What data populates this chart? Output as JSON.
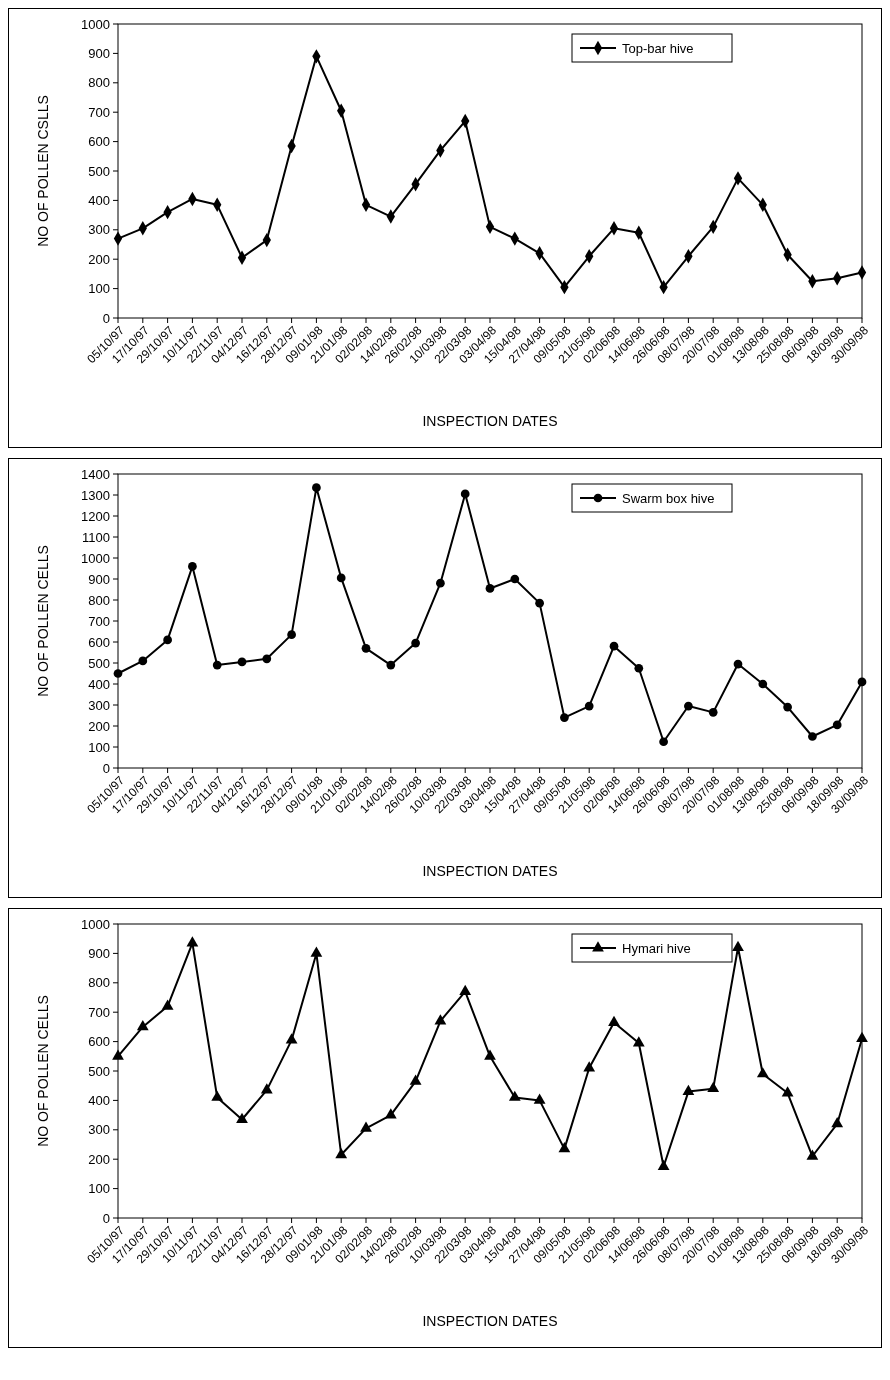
{
  "chart_data": [
    {
      "type": "line",
      "xlabel": "INSPECTION DATES",
      "ylabel": "NO OF POLLEN CSLLS",
      "categories": [
        "05/10/97",
        "17/10/97",
        "29/10/97",
        "10/11/97",
        "22/11/97",
        "04/12/97",
        "16/12/97",
        "28/12/97",
        "09/01/98",
        "21/01/98",
        "02/02/98",
        "14/02/98",
        "26/02/98",
        "10/03/98",
        "22/03/98",
        "03/04/98",
        "15/04/98",
        "27/04/98",
        "09/05/98",
        "21/05/98",
        "02/06/98",
        "14/06/98",
        "26/06/98",
        "08/07/98",
        "20/07/98",
        "01/08/98",
        "13/08/98",
        "25/08/98",
        "06/09/98",
        "18/09/98",
        "30/09/98"
      ],
      "series": [
        {
          "name": "Top-bar hive",
          "color": "#000000",
          "values": [
            270,
            305,
            360,
            405,
            385,
            205,
            265,
            585,
            890,
            705,
            385,
            345,
            455,
            570,
            670,
            310,
            270,
            220,
            105,
            210,
            305,
            290,
            105,
            210,
            310,
            475,
            385,
            215,
            125,
            135,
            155
          ]
        }
      ],
      "ylim": [
        0,
        1000
      ],
      "yticks": [
        0,
        100,
        200,
        300,
        400,
        500,
        600,
        700,
        800,
        900,
        1000
      ],
      "marker": "diamond",
      "legend": "top right",
      "grid": false
    },
    {
      "type": "line",
      "xlabel": "INSPECTION DATES",
      "ylabel": "NO OF POLLEN CELLS",
      "categories": [
        "05/10/97",
        "17/10/97",
        "29/10/97",
        "10/11/97",
        "22/11/97",
        "04/12/97",
        "16/12/97",
        "28/12/97",
        "09/01/98",
        "21/01/98",
        "02/02/98",
        "14/02/98",
        "26/02/98",
        "10/03/98",
        "22/03/98",
        "03/04/98",
        "15/04/98",
        "27/04/98",
        "09/05/98",
        "21/05/98",
        "02/06/98",
        "14/06/98",
        "26/06/98",
        "08/07/98",
        "20/07/98",
        "01/08/98",
        "13/08/98",
        "25/08/98",
        "06/09/98",
        "18/09/98",
        "30/09/98"
      ],
      "series": [
        {
          "name": "Swarm box hive",
          "color": "#000000",
          "values": [
            450,
            510,
            610,
            960,
            490,
            505,
            520,
            635,
            1335,
            905,
            570,
            490,
            595,
            880,
            1305,
            855,
            900,
            785,
            240,
            295,
            580,
            475,
            125,
            295,
            265,
            495,
            400,
            290,
            150,
            205,
            410
          ]
        }
      ],
      "ylim": [
        0,
        1400
      ],
      "yticks": [
        0,
        100,
        200,
        300,
        400,
        500,
        600,
        700,
        800,
        900,
        1000,
        1100,
        1200,
        1300,
        1400
      ],
      "marker": "circle",
      "legend": "top right",
      "grid": false
    },
    {
      "type": "line",
      "xlabel": "INSPECTION DATES",
      "ylabel": "NO OF POLLEN CELLS",
      "categories": [
        "05/10/97",
        "17/10/97",
        "29/10/97",
        "10/11/97",
        "22/11/97",
        "04/12/97",
        "16/12/97",
        "28/12/97",
        "09/01/98",
        "21/01/98",
        "02/02/98",
        "14/02/98",
        "26/02/98",
        "10/03/98",
        "22/03/98",
        "03/04/98",
        "15/04/98",
        "27/04/98",
        "09/05/98",
        "21/05/98",
        "02/06/98",
        "14/06/98",
        "26/06/98",
        "08/07/98",
        "20/07/98",
        "01/08/98",
        "13/08/98",
        "25/08/98",
        "06/09/98",
        "18/09/98",
        "30/09/98"
      ],
      "series": [
        {
          "name": "Hymari hive",
          "color": "#000000",
          "values": [
            550,
            650,
            720,
            935,
            410,
            335,
            435,
            605,
            900,
            215,
            305,
            350,
            465,
            670,
            770,
            550,
            410,
            400,
            235,
            510,
            665,
            595,
            175,
            430,
            440,
            920,
            490,
            425,
            210,
            320,
            610
          ]
        }
      ],
      "ylim": [
        0,
        1000
      ],
      "yticks": [
        0,
        100,
        200,
        300,
        400,
        500,
        600,
        700,
        800,
        900,
        1000
      ],
      "marker": "triangle",
      "legend": "top right",
      "grid": false
    }
  ]
}
